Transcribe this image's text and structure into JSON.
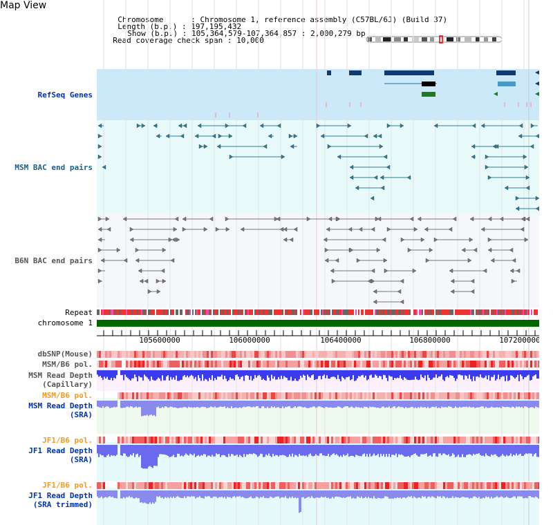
{
  "title": "Map View",
  "info": {
    "chromosome_label": "Chromosome",
    "chromosome_value": "Chromosome 1, reference assembly (C57BL/6J) (Build 37)",
    "length_label": "Length (b.p.)",
    "length_value": "197,195,432",
    "show_label": "Show (b.p.)",
    "show_value": "105,364,579-107,364,857 : 2,000,279 bp",
    "coverage_label": "Read coverage check span",
    "coverage_value": "10,000"
  },
  "tracks": {
    "refseq": "RefSeq Genes",
    "msm_bac": "MSM BAC end pairs",
    "b6n_bac": "B6N BAC end pairs",
    "repeat": "Repeat",
    "chromosome": "chromosome 1",
    "dbsnp": "dbSNP(Mouse)",
    "msm_b6_pol1": "MSM/B6 pol.",
    "msm_depth_cap_1": "MSM Read Depth",
    "msm_depth_cap_2": "(Capillary)",
    "msm_b6_pol2": "MSM/B6 pol.",
    "msm_depth_sra_1": "MSM Read Depth",
    "msm_depth_sra_2": "(SRA)",
    "jf1_pol1": "JF1/B6 pol.",
    "jf1_depth_sra_1": "JF1 Read Depth",
    "jf1_depth_sra_2": "(SRA)",
    "jf1_pol2": "JF1/B6 pol.",
    "jf1_depth_trim_1": "JF1 Read Depth",
    "jf1_depth_trim_2": "(SRA trimmed)"
  },
  "axis": {
    "ticks": [
      "105600000",
      "106000000",
      "106400000",
      "106800000",
      "107200000"
    ]
  },
  "colors": {
    "refseq_bg": "#cbe9f8",
    "bac_bg": "#e8f9fa",
    "gene_navy": "#123a6e",
    "gene_green": "#1f7a1f",
    "bac_teal": "#2a7c95",
    "bac_gray": "#777777",
    "chromosome_green": "#006600",
    "depth_blue": "#3a3aee",
    "depth_light": "#8a8aee",
    "pol_red": "#ee4444"
  }
}
